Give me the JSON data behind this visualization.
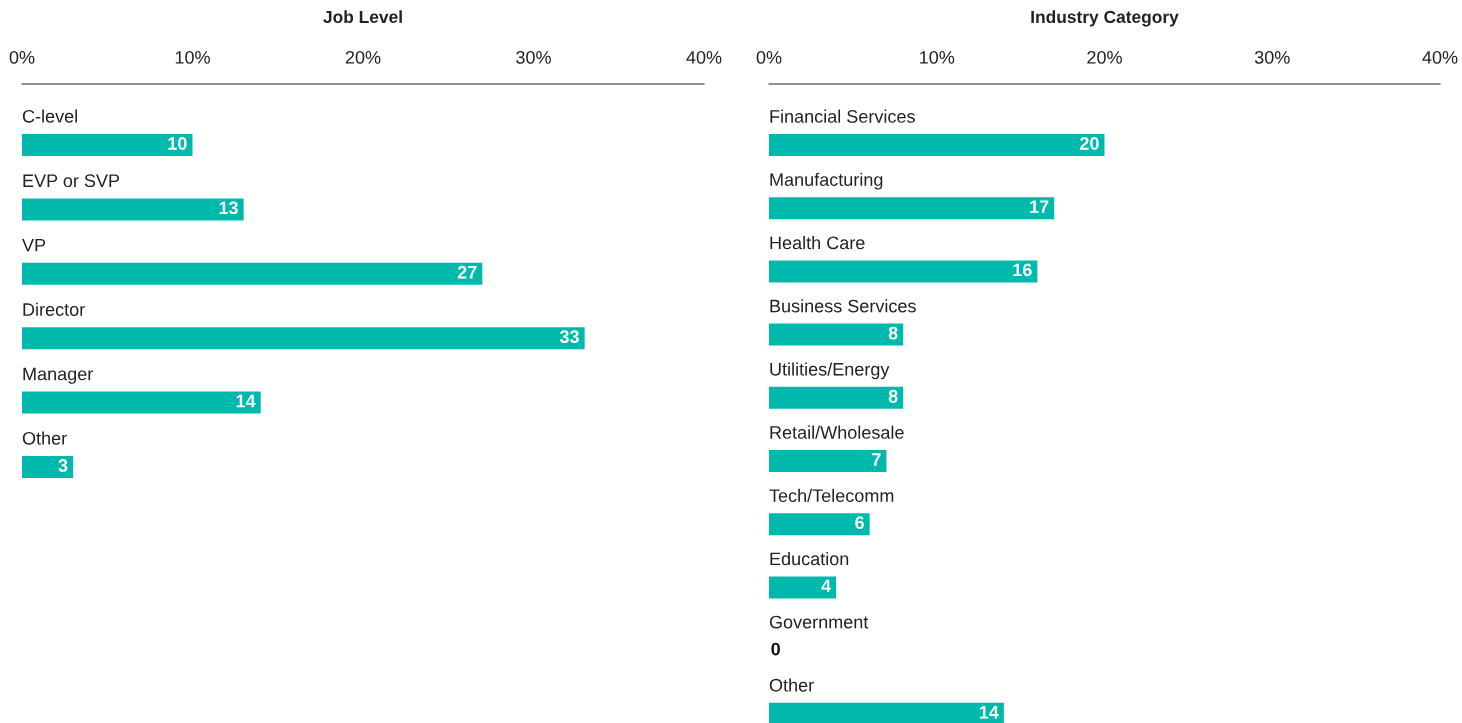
{
  "chart_data": [
    {
      "type": "bar",
      "orientation": "horizontal",
      "title": "Job Level",
      "categories": [
        "C-level",
        "EVP or SVP",
        "VP",
        "Director",
        "Manager",
        "Other"
      ],
      "values": [
        10,
        13,
        27,
        33,
        14,
        3
      ],
      "color": "#00b9ad",
      "xlim": [
        0,
        40
      ],
      "xticks": [
        {
          "value": 0,
          "label": "0%"
        },
        {
          "value": 10,
          "label": "10%"
        },
        {
          "value": 20,
          "label": "20%"
        },
        {
          "value": 30,
          "label": "30%"
        },
        {
          "value": 40,
          "label": "40%"
        }
      ],
      "data_labels": true,
      "grid": false,
      "legend": false
    },
    {
      "type": "bar",
      "orientation": "horizontal",
      "title": "Industry Category",
      "categories": [
        "Financial Services",
        "Manufacturing",
        "Health Care",
        "Business Services",
        "Utilities/Energy",
        "Retail/Wholesale",
        "Tech/Telecomm",
        "Education",
        "Government",
        "Other"
      ],
      "values": [
        20,
        17,
        16,
        8,
        8,
        7,
        6,
        4,
        0,
        14
      ],
      "color": "#00b9ad",
      "xlim": [
        0,
        40
      ],
      "xticks": [
        {
          "value": 0,
          "label": "0%"
        },
        {
          "value": 10,
          "label": "10%"
        },
        {
          "value": 20,
          "label": "20%"
        },
        {
          "value": 30,
          "label": "30%"
        },
        {
          "value": 40,
          "label": "40%"
        }
      ],
      "data_labels": true,
      "grid": false,
      "legend": false
    }
  ]
}
